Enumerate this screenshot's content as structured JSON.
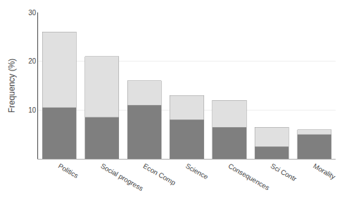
{
  "chart_data": {
    "type": "bar",
    "stacked": true,
    "categories": [
      "Politics",
      "Social progress",
      "Econ Comp",
      "Science",
      "Consequences",
      "Sci Contr",
      "Morality"
    ],
    "series": [
      {
        "color": "#7f7f7f",
        "values": [
          10.5,
          8.5,
          11.0,
          8.0,
          6.5,
          2.5,
          5.0
        ]
      },
      {
        "color": "#e0e0e0",
        "values": [
          15.5,
          12.5,
          5.0,
          5.0,
          5.5,
          4.0,
          1.0
        ]
      }
    ],
    "ylabel": "Frequency (%)",
    "ylim": [
      0,
      30
    ],
    "yticks": [
      10,
      20,
      30
    ],
    "grid": true
  }
}
